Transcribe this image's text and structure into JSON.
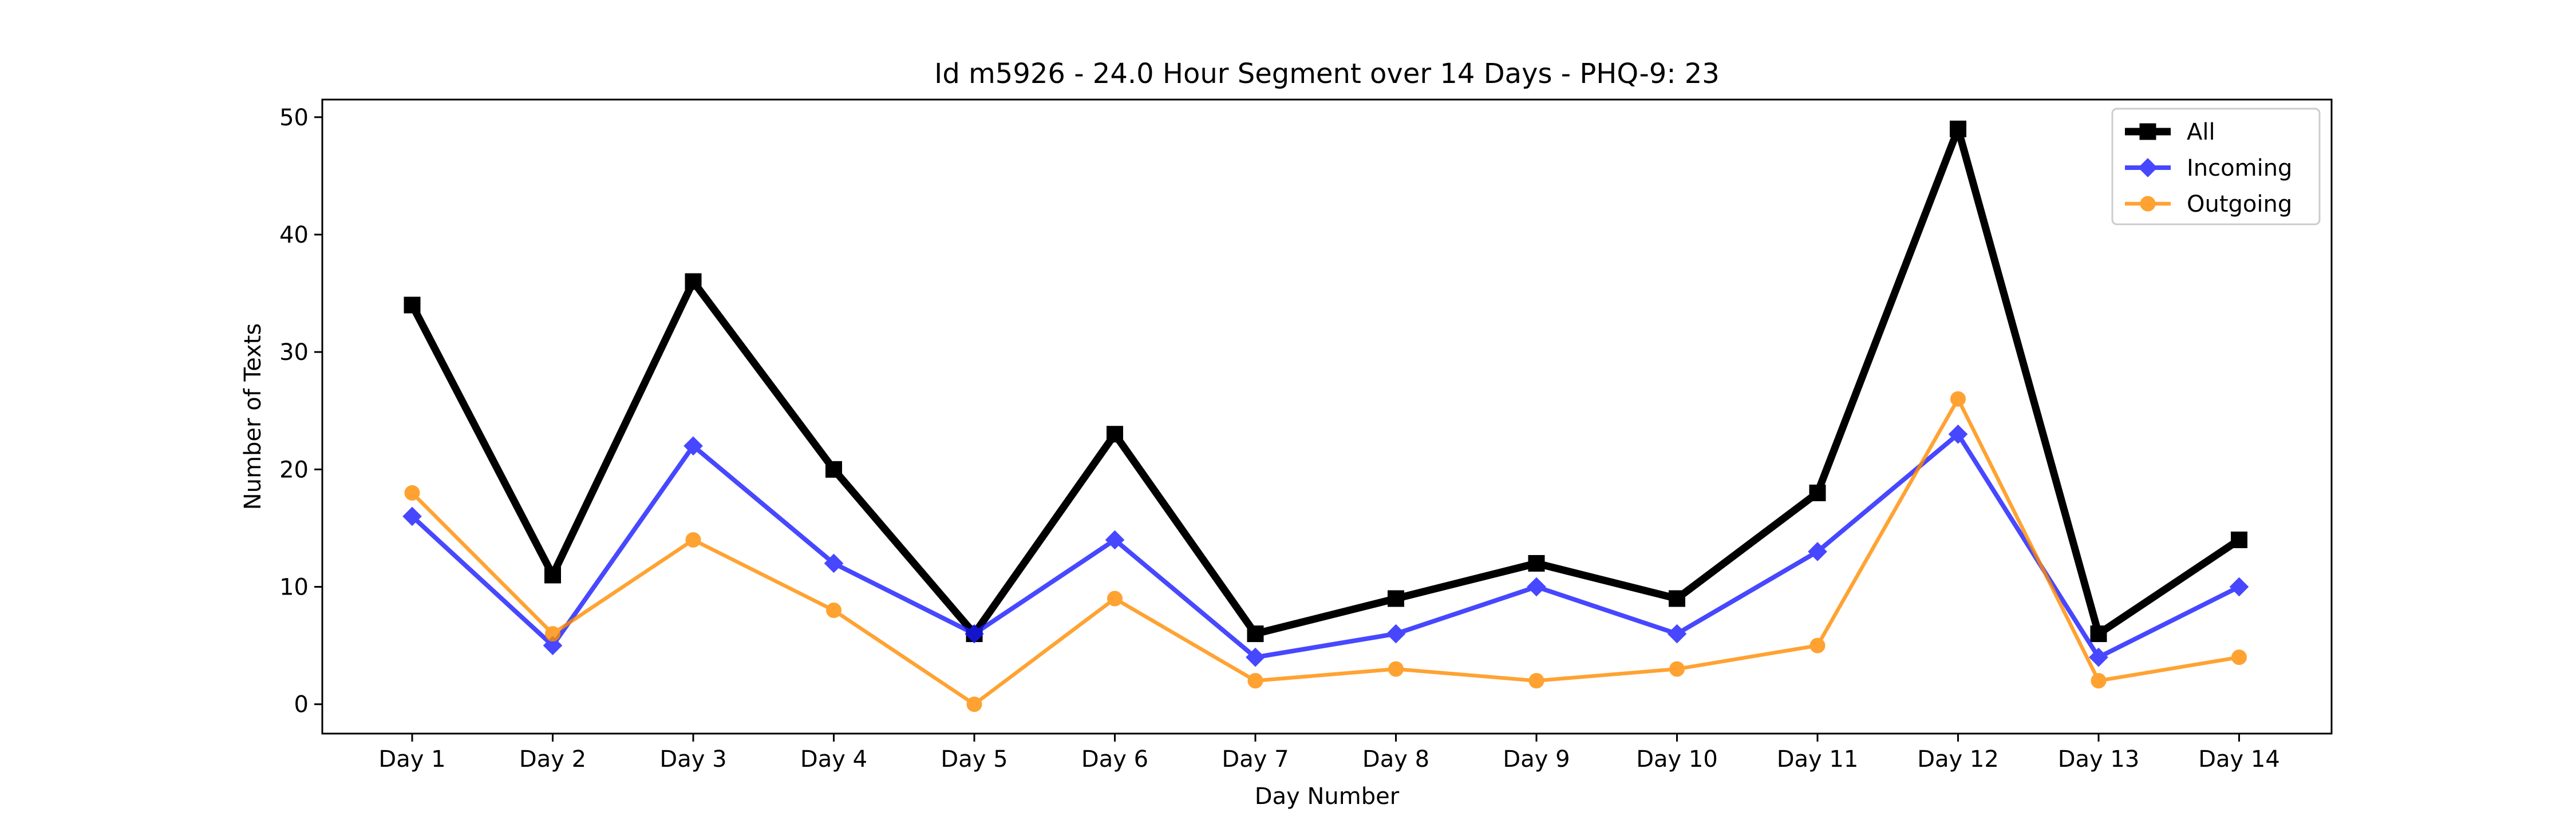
{
  "chart_data": {
    "type": "line",
    "title": "Id m5926 - 24.0 Hour Segment over 14 Days - PHQ-9: 23",
    "xlabel": "Day Number",
    "ylabel": "Number of Texts",
    "categories": [
      "Day 1",
      "Day 2",
      "Day 3",
      "Day 4",
      "Day 5",
      "Day 6",
      "Day 7",
      "Day 8",
      "Day 9",
      "Day 10",
      "Day 11",
      "Day 12",
      "Day 13",
      "Day 14"
    ],
    "ylim": [
      -2.5,
      51.5
    ],
    "yticks": [
      0,
      10,
      20,
      30,
      40,
      50
    ],
    "grid": false,
    "legend_position": "top-right",
    "series": [
      {
        "name": "All",
        "color": "#000000",
        "marker": "square",
        "values": [
          34,
          11,
          36,
          20,
          6,
          23,
          6,
          9,
          12,
          9,
          18,
          49,
          6,
          14
        ]
      },
      {
        "name": "Incoming",
        "color": "#1a1aff",
        "marker": "diamond",
        "values": [
          16,
          5,
          22,
          12,
          6,
          14,
          4,
          6,
          10,
          6,
          13,
          23,
          4,
          10
        ]
      },
      {
        "name": "Outgoing",
        "color": "#ff8c00",
        "marker": "circle",
        "values": [
          18,
          6,
          14,
          8,
          0,
          9,
          2,
          3,
          2,
          3,
          5,
          26,
          2,
          4
        ]
      }
    ]
  }
}
